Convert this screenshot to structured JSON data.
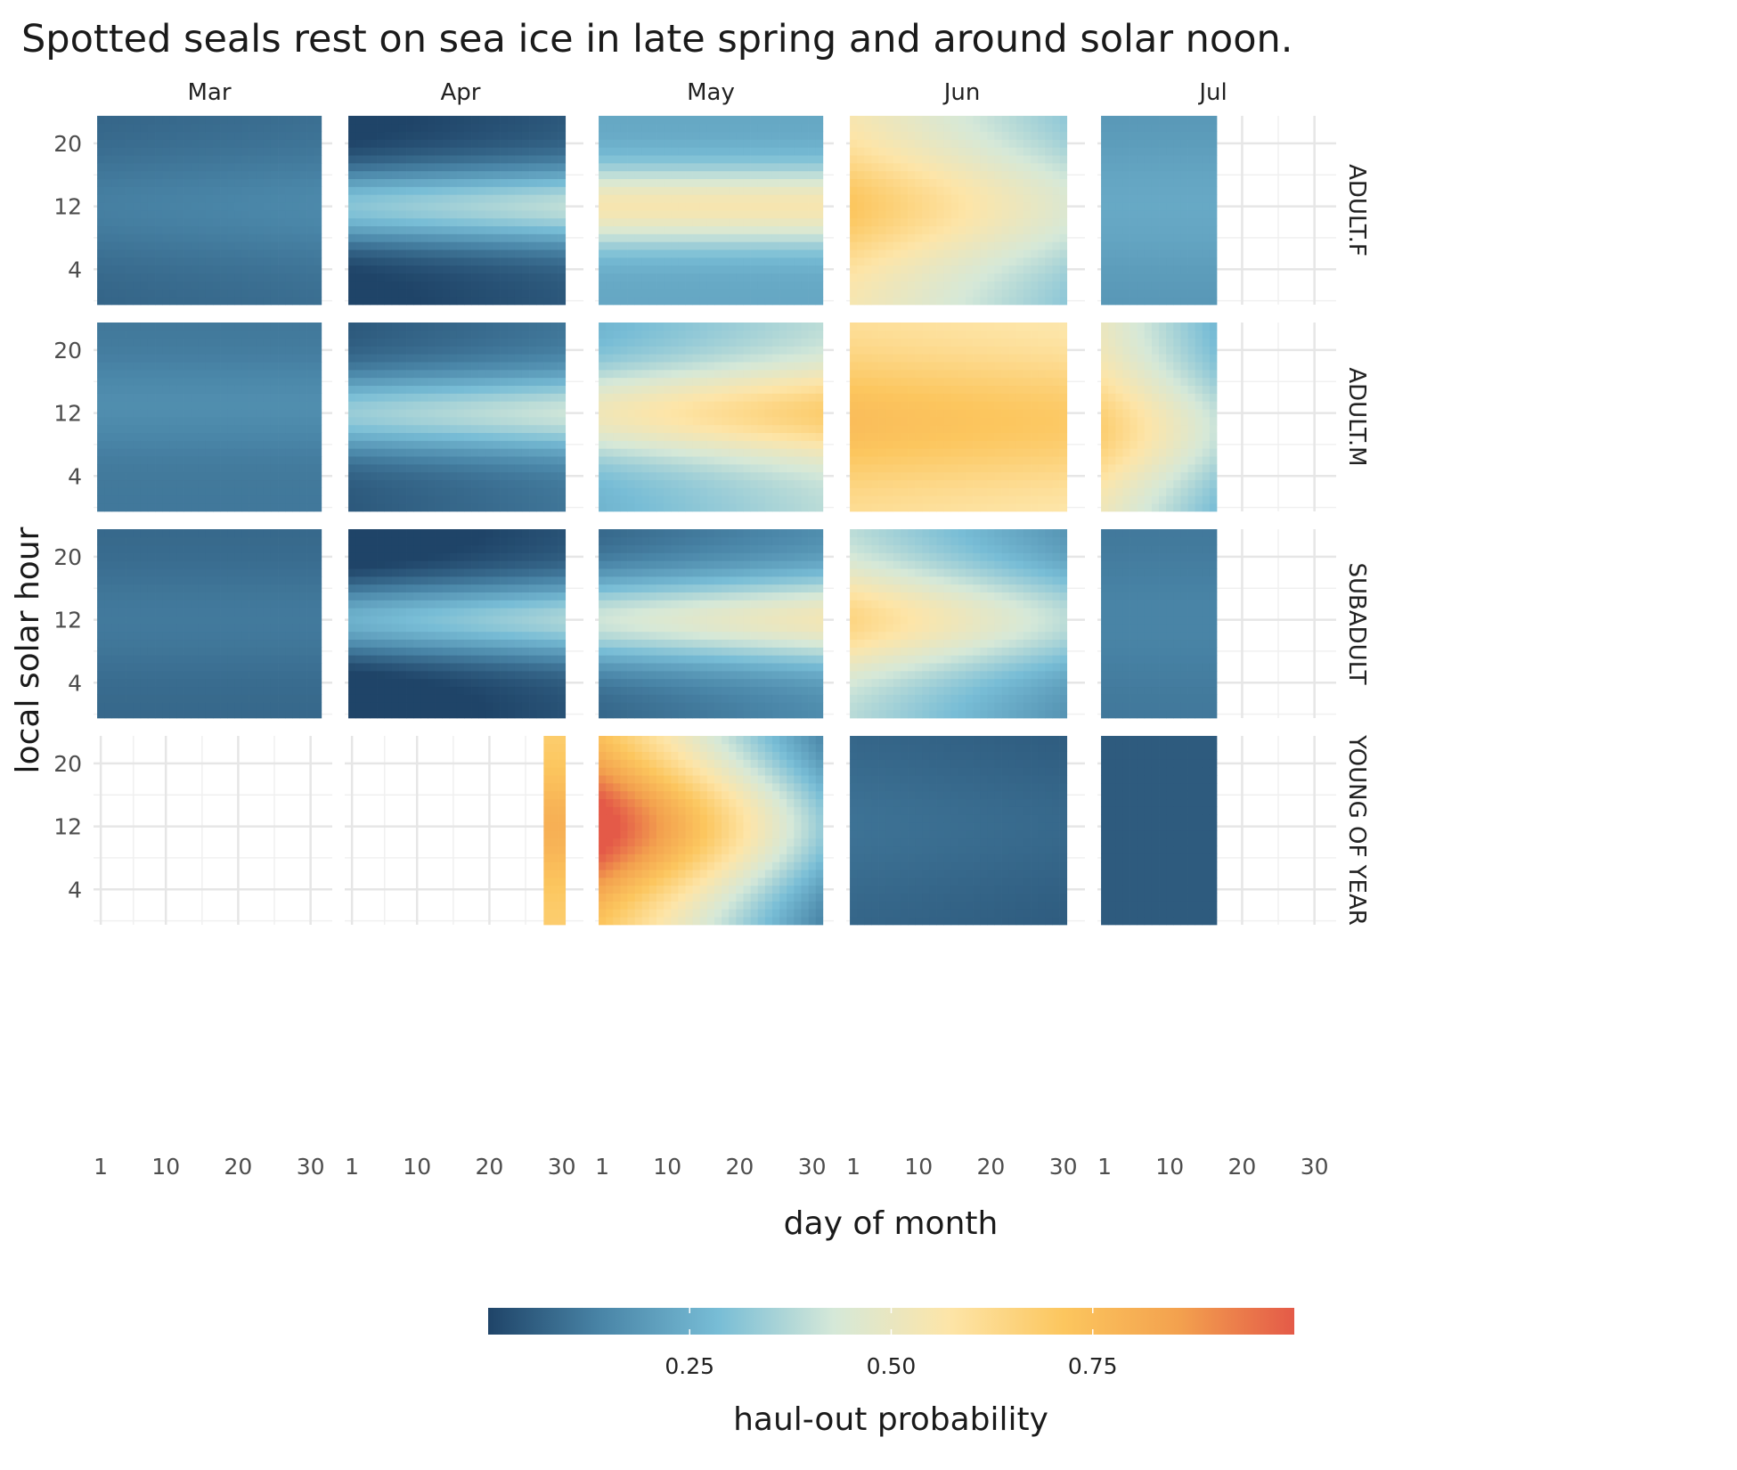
{
  "chart_data": {
    "type": "heatmap",
    "title": "Spotted seals rest on sea ice in late spring and around solar noon.",
    "xlabel": "day of month",
    "ylabel": "local solar hour",
    "x_ticks": [
      1,
      10,
      20,
      30
    ],
    "y_ticks": [
      4,
      12,
      20
    ],
    "xlim": [
      0,
      33
    ],
    "ylim": [
      -0.5,
      23.5
    ],
    "columns": [
      "Mar",
      "Apr",
      "May",
      "Jun",
      "Jul"
    ],
    "rows": [
      "ADULT.F",
      "ADULT.M",
      "SUBADULT",
      "YOUNG OF YEAR"
    ],
    "legend": {
      "title": "haul-out probability",
      "ticks": [
        "0.25",
        "0.50",
        "0.75"
      ],
      "tick_values": [
        0.25,
        0.5,
        0.75
      ],
      "range": [
        0,
        1
      ],
      "position": "bottom",
      "colors": [
        "#1f4468",
        "#4a86a8",
        "#78bdd6",
        "#d5e8d8",
        "#fde5a8",
        "#fcc65e",
        "#f3a14e",
        "#e45a48"
      ]
    },
    "panels": [
      {
        "row": "ADULT.F",
        "col": "Mar",
        "day_range": [
          1,
          31
        ],
        "center": 0.1,
        "peak": 0.06,
        "peak_hour": 12,
        "width": 5,
        "trend": 0.02
      },
      {
        "row": "ADULT.F",
        "col": "Apr",
        "day_range": [
          1,
          30
        ],
        "center": 0.13,
        "peak": 0.34,
        "peak_hour": 12,
        "width": 3.5,
        "trend": 0.06
      },
      {
        "row": "ADULT.F",
        "col": "May",
        "day_range": [
          1,
          31
        ],
        "center": 0.34,
        "peak": 0.32,
        "peak_hour": 12,
        "width": 3.5,
        "trend": 0.0
      },
      {
        "row": "ADULT.F",
        "col": "Jun",
        "day_range": [
          1,
          30
        ],
        "center": 0.48,
        "peak": 0.16,
        "peak_hour": 12,
        "width": 5,
        "trend": -0.22
      },
      {
        "row": "ADULT.F",
        "col": "Jul",
        "day_range": [
          1,
          16
        ],
        "center": 0.2,
        "peak": 0.05,
        "peak_hour": 12,
        "width": 6,
        "trend": 0.0
      },
      {
        "row": "ADULT.M",
        "col": "Mar",
        "day_range": [
          1,
          31
        ],
        "center": 0.13,
        "peak": 0.05,
        "peak_hour": 13,
        "width": 4,
        "trend": 0.0
      },
      {
        "row": "ADULT.M",
        "col": "Apr",
        "day_range": [
          1,
          30
        ],
        "center": 0.18,
        "peak": 0.3,
        "peak_hour": 12,
        "width": 3.5,
        "trend": 0.06
      },
      {
        "row": "ADULT.M",
        "col": "May",
        "day_range": [
          1,
          31
        ],
        "center": 0.42,
        "peak": 0.28,
        "peak_hour": 12,
        "width": 4,
        "trend": 0.12
      },
      {
        "row": "ADULT.M",
        "col": "Jun",
        "day_range": [
          1,
          30
        ],
        "center": 0.62,
        "peak": 0.16,
        "peak_hour": 11,
        "width": 6,
        "trend": -0.04
      },
      {
        "row": "ADULT.M",
        "col": "Jul",
        "day_range": [
          1,
          16
        ],
        "center": 0.44,
        "peak": 0.16,
        "peak_hour": 10,
        "width": 5,
        "trend": -0.22
      },
      {
        "row": "SUBADULT",
        "col": "Mar",
        "day_range": [
          1,
          31
        ],
        "center": 0.09,
        "peak": 0.04,
        "peak_hour": 12,
        "width": 5,
        "trend": 0.0
      },
      {
        "row": "SUBADULT",
        "col": "Apr",
        "day_range": [
          1,
          30
        ],
        "center": 0.1,
        "peak": 0.32,
        "peak_hour": 12,
        "width": 3.5,
        "trend": 0.08
      },
      {
        "row": "SUBADULT",
        "col": "May",
        "day_range": [
          1,
          31
        ],
        "center": 0.24,
        "peak": 0.36,
        "peak_hour": 12,
        "width": 4,
        "trend": 0.08
      },
      {
        "row": "SUBADULT",
        "col": "Jun",
        "day_range": [
          1,
          30
        ],
        "center": 0.36,
        "peak": 0.24,
        "peak_hour": 12,
        "width": 4.5,
        "trend": -0.2
      },
      {
        "row": "SUBADULT",
        "col": "Jul",
        "day_range": [
          1,
          16
        ],
        "center": 0.12,
        "peak": 0.03,
        "peak_hour": 12,
        "width": 6,
        "trend": 0.0
      },
      {
        "row": "YOUNG OF YEAR",
        "col": "Apr",
        "day_range": [
          28,
          30
        ],
        "center": 0.72,
        "peak": 0.12,
        "peak_hour": 12,
        "width": 5,
        "trend": 0.0
      },
      {
        "row": "YOUNG OF YEAR",
        "col": "May",
        "day_range": [
          1,
          31
        ],
        "center": 0.5,
        "peak": 0.3,
        "peak_hour": 12,
        "width": 6,
        "trend": -0.55
      },
      {
        "row": "YOUNG OF YEAR",
        "col": "Jun",
        "day_range": [
          1,
          30
        ],
        "center": 0.07,
        "peak": 0.03,
        "peak_hour": 12,
        "width": 6,
        "trend": -0.02
      },
      {
        "row": "YOUNG OF YEAR",
        "col": "Jul",
        "day_range": [
          1,
          16
        ],
        "center": 0.05,
        "peak": 0.0,
        "peak_hour": 12,
        "width": 6,
        "trend": 0.0
      }
    ]
  }
}
